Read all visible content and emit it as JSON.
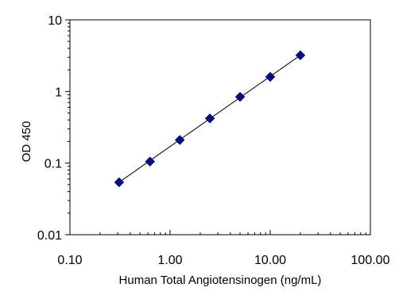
{
  "chart_data": {
    "type": "scatter",
    "title": "",
    "xlabel": "Human Total Angiotensinogen (ng/mL)",
    "ylabel": "OD 450",
    "x_scale": "log",
    "y_scale": "log",
    "xlim": [
      0.1,
      100
    ],
    "ylim": [
      0.01,
      10
    ],
    "x_ticks": [
      0.1,
      1,
      10,
      100
    ],
    "x_tick_labels": [
      "0.10",
      "1.00",
      "10.00",
      "100.00"
    ],
    "y_ticks": [
      0.01,
      0.1,
      1,
      10
    ],
    "y_tick_labels": [
      "0.01",
      "0.1",
      "1",
      "10"
    ],
    "grid": false,
    "legend": "none",
    "series": [
      {
        "marker": "diamond",
        "color": "#0a0a78",
        "x": [
          0.31,
          0.63,
          1.25,
          2.5,
          5,
          10,
          20
        ],
        "y": [
          0.054,
          0.105,
          0.21,
          0.42,
          0.84,
          1.6,
          3.2
        ]
      }
    ],
    "trendline": {
      "type": "line",
      "color": "#000000",
      "x": [
        0.31,
        20
      ],
      "y": [
        0.054,
        3.2
      ]
    }
  }
}
